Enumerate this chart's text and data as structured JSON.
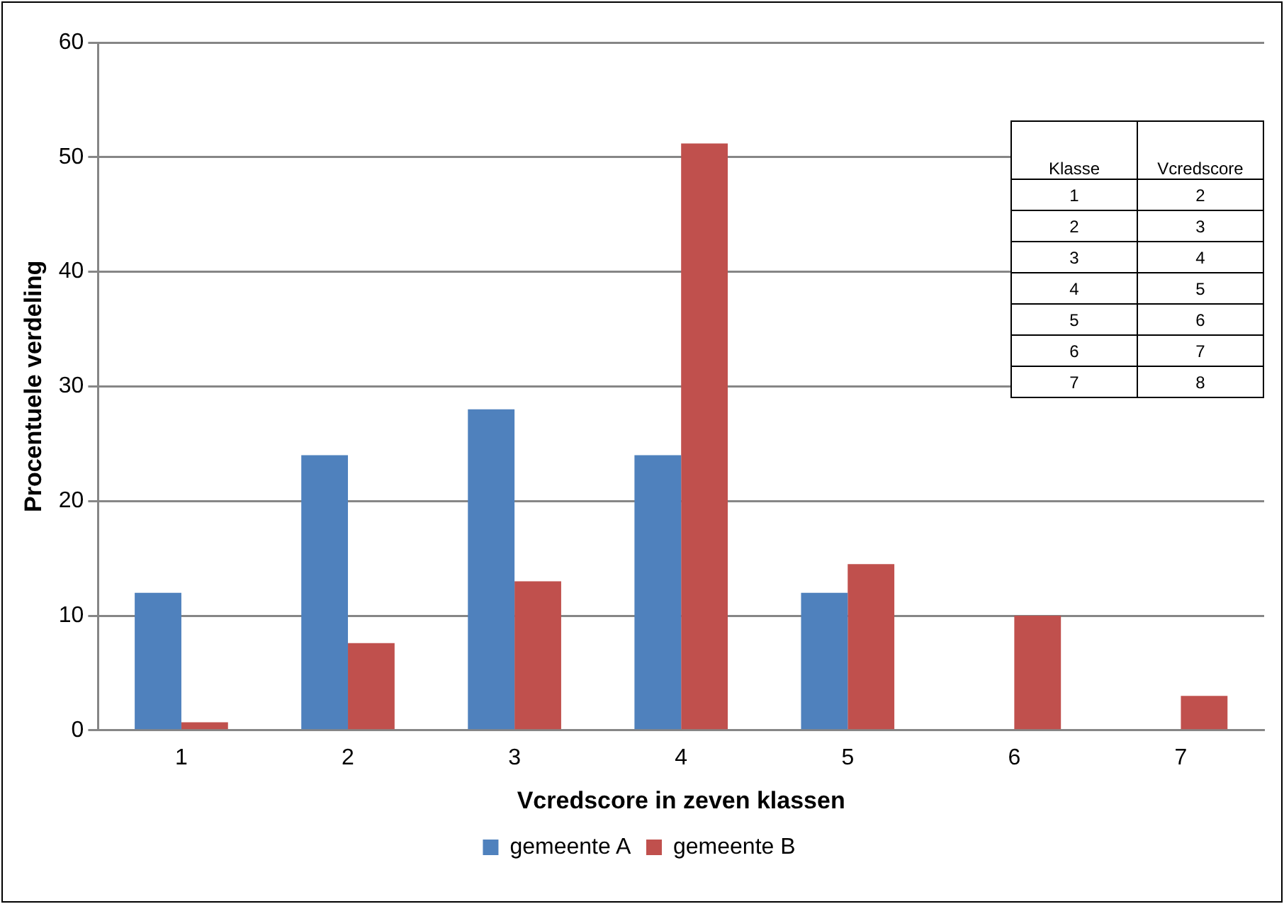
{
  "chart_data": {
    "type": "bar",
    "xlabel": "Vcredscore in zeven klassen",
    "ylabel": "Procentuele verdeling",
    "categories": [
      "1",
      "2",
      "3",
      "4",
      "5",
      "6",
      "7"
    ],
    "series": [
      {
        "name": "gemeente A",
        "color": "#4f81bd",
        "values": [
          12,
          24,
          28,
          24,
          12,
          0,
          0
        ]
      },
      {
        "name": "gemeente B",
        "color": "#c0504d",
        "values": [
          0.7,
          7.6,
          13,
          51.2,
          14.5,
          10,
          3
        ]
      }
    ],
    "ylim": [
      0,
      60
    ],
    "yticks": [
      0,
      10,
      20,
      30,
      40,
      50,
      60
    ],
    "grid": "y",
    "legend": "bottom",
    "annotations": [
      "Klasse",
      "Vcredscore",
      "1",
      "2",
      "2",
      "3",
      "3",
      "4",
      "4",
      "5",
      "5",
      "6",
      "6",
      "7",
      "7",
      "8"
    ]
  }
}
